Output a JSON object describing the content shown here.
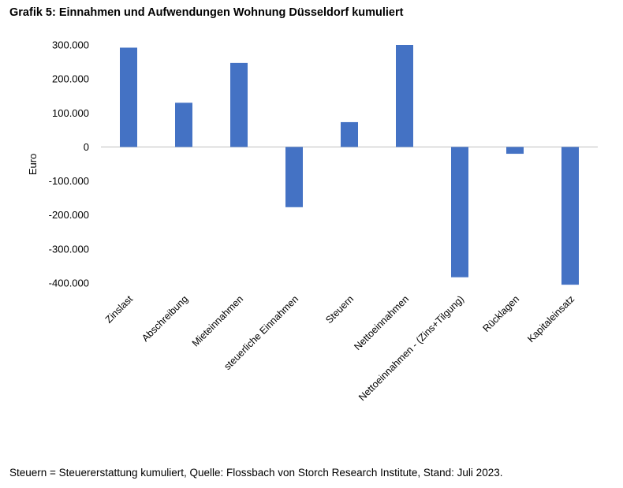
{
  "title": "Grafik 5: Einnahmen und Aufwendungen Wohnung Düsseldorf kumuliert",
  "footnote": "Steuern = Steuererstattung kumuliert, Quelle: Flossbach von Storch Research Institute, Stand: Juli 2023.",
  "colors": {
    "bar": "#4472C4",
    "axis": "#BFBFBF"
  },
  "chart_data": {
    "type": "bar",
    "title": "Grafik 5: Einnahmen und Aufwendungen Wohnung Düsseldorf kumuliert",
    "xlabel": "",
    "ylabel": "Euro",
    "ylim": [
      -400000,
      300000
    ],
    "yticks": [
      300000,
      200000,
      100000,
      0,
      -100000,
      -200000,
      -300000,
      -400000
    ],
    "ytick_labels": [
      "300.000",
      "200.000",
      "100.000",
      "0",
      "-100.000",
      "-200.000",
      "-300.000",
      "-400.000"
    ],
    "categories": [
      "Zinslast",
      "Abschreibung",
      "Mieteinnahmen",
      "steuerliche Einnahmen",
      "Steuern",
      "Nettoeinnahmen",
      "Nettoeinnahmen - (Zins+Tilgung)",
      "Rücklagen",
      "Kapitaleinsatz"
    ],
    "values": [
      292000,
      130000,
      247000,
      -177000,
      73000,
      300000,
      -383000,
      -20000,
      -405000
    ],
    "grid": false,
    "legend": "none"
  }
}
